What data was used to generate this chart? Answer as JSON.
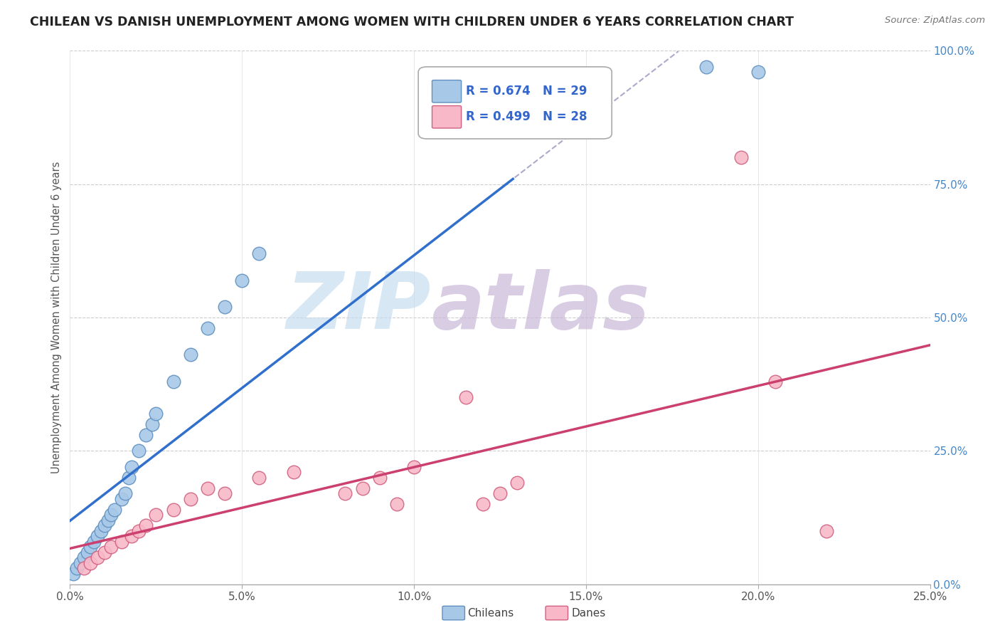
{
  "title": "CHILEAN VS DANISH UNEMPLOYMENT AMONG WOMEN WITH CHILDREN UNDER 6 YEARS CORRELATION CHART",
  "source": "Source: ZipAtlas.com",
  "ylabel": "Unemployment Among Women with Children Under 6 years",
  "xticks_vals": [
    0.0,
    0.05,
    0.1,
    0.15,
    0.2,
    0.25
  ],
  "yticks_vals": [
    0.0,
    0.25,
    0.5,
    0.75,
    1.0
  ],
  "xmin": 0.0,
  "xmax": 0.25,
  "ymin": 0.0,
  "ymax": 1.0,
  "chilean_color": "#a8c8e8",
  "danish_color": "#f8b8c8",
  "chilean_edge": "#6090c0",
  "danish_edge": "#d06080",
  "regression_chilean_color": "#3070cc",
  "regression_danish_color": "#cc4070",
  "legend_R_chilean": "R = 0.674",
  "legend_N_chilean": "N = 29",
  "legend_R_danish": "R = 0.499",
  "legend_N_danish": "N = 28",
  "text_color_blue": "#3366cc",
  "watermark_zip": "ZIP",
  "watermark_atlas": "atlas",
  "watermark_color_zip": "#c8ddf0",
  "watermark_color_atlas": "#c8b8d8",
  "chilean_x": [
    0.001,
    0.002,
    0.003,
    0.004,
    0.005,
    0.006,
    0.007,
    0.008,
    0.009,
    0.01,
    0.011,
    0.012,
    0.013,
    0.015,
    0.016,
    0.017,
    0.018,
    0.02,
    0.022,
    0.024,
    0.025,
    0.03,
    0.035,
    0.04,
    0.045,
    0.05,
    0.055,
    0.185,
    0.2
  ],
  "chilean_y": [
    0.02,
    0.03,
    0.04,
    0.05,
    0.06,
    0.07,
    0.08,
    0.09,
    0.1,
    0.11,
    0.12,
    0.13,
    0.14,
    0.16,
    0.17,
    0.2,
    0.22,
    0.25,
    0.28,
    0.3,
    0.32,
    0.38,
    0.43,
    0.48,
    0.52,
    0.57,
    0.62,
    0.97,
    0.96
  ],
  "danish_x": [
    0.004,
    0.006,
    0.008,
    0.01,
    0.012,
    0.015,
    0.018,
    0.02,
    0.022,
    0.025,
    0.03,
    0.035,
    0.04,
    0.045,
    0.055,
    0.065,
    0.08,
    0.085,
    0.09,
    0.095,
    0.1,
    0.115,
    0.12,
    0.125,
    0.13,
    0.195,
    0.205,
    0.22
  ],
  "danish_y": [
    0.03,
    0.04,
    0.05,
    0.06,
    0.07,
    0.08,
    0.09,
    0.1,
    0.11,
    0.13,
    0.14,
    0.16,
    0.18,
    0.17,
    0.2,
    0.21,
    0.17,
    0.18,
    0.2,
    0.15,
    0.22,
    0.35,
    0.15,
    0.17,
    0.19,
    0.8,
    0.38,
    0.1
  ]
}
